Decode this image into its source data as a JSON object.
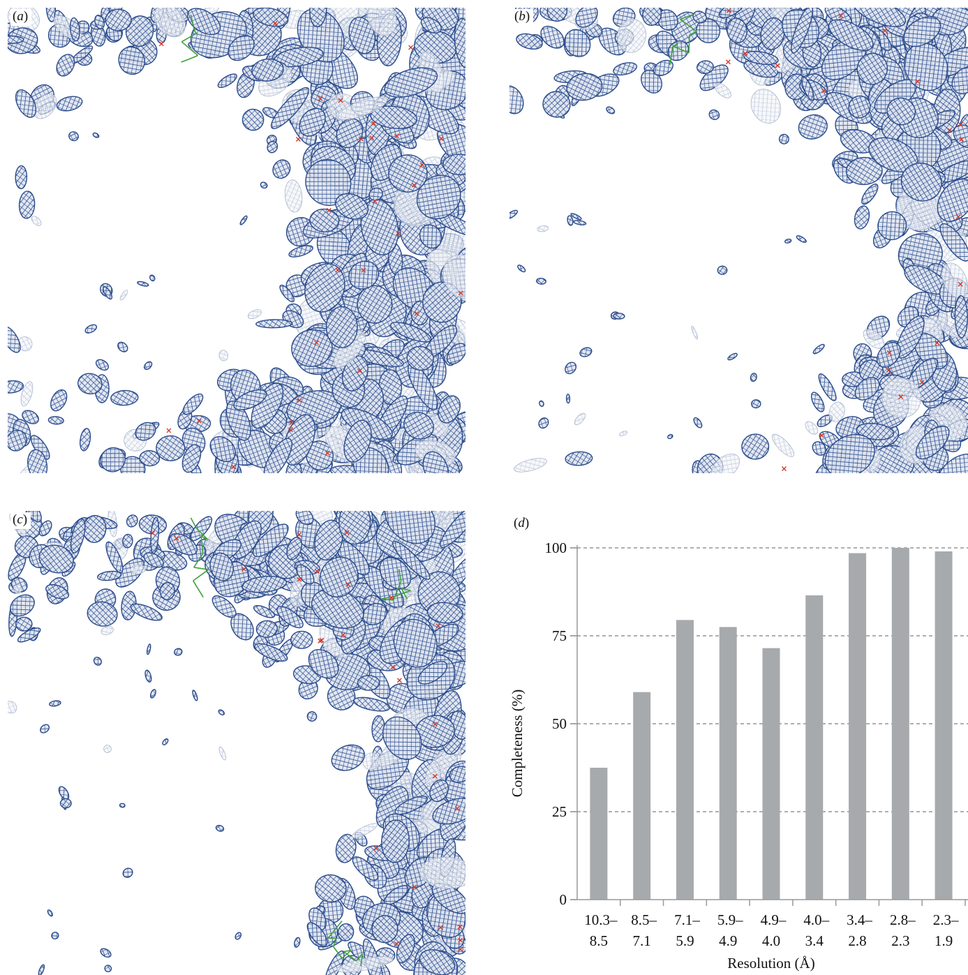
{
  "panels": [
    {
      "id": "a",
      "label": "a",
      "description_icon": "electron-density-mesh"
    },
    {
      "id": "b",
      "label": "b",
      "description_icon": "electron-density-mesh"
    },
    {
      "id": "c",
      "label": "c",
      "description_icon": "electron-density-mesh"
    },
    {
      "id": "d",
      "label": "d"
    }
  ],
  "colors": {
    "mesh_dark": "#2a4b8c",
    "mesh_light": "#aab6cc",
    "bar": "#a7aaad",
    "grid": "#7f7f7f",
    "model_green": "#3fa03a",
    "model_red": "#d23a2a"
  },
  "chart_data": {
    "type": "bar",
    "categories": [
      "10.3–\n8.5",
      "8.5–\n7.1",
      "7.1–\n5.9",
      "5.9–\n4.9",
      "4.9–\n4.0",
      "4.0–\n3.4",
      "3.4–\n2.8",
      "2.8–\n2.3",
      "2.3–\n1.9"
    ],
    "category_lines": [
      [
        "10.3–",
        "8.5"
      ],
      [
        "8.5–",
        "7.1"
      ],
      [
        "7.1–",
        "5.9"
      ],
      [
        "5.9–",
        "4.9"
      ],
      [
        "4.9–",
        "4.0"
      ],
      [
        "4.0–",
        "3.4"
      ],
      [
        "3.4–",
        "2.8"
      ],
      [
        "2.8–",
        "2.3"
      ],
      [
        "2.3–",
        "1.9"
      ]
    ],
    "values": [
      37.5,
      59,
      79.5,
      77.5,
      71.5,
      86.5,
      98.5,
      100,
      99
    ],
    "xlabel": "Resolution (Å)",
    "ylabel": "Completeness (%)",
    "ylim": [
      0,
      100
    ],
    "yticks": [
      0,
      25,
      50,
      75,
      100
    ],
    "grid": true,
    "grid_style": "dashed horizontal"
  }
}
